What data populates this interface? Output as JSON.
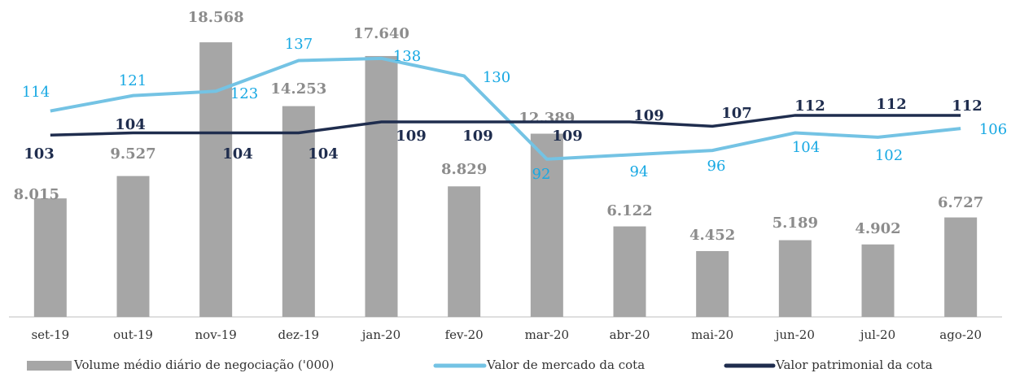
{
  "chart_data": {
    "type": "bar-line",
    "categories": [
      "set-19",
      "out-19",
      "nov-19",
      "dez-19",
      "jan-20",
      "fev-20",
      "mar-20",
      "abr-20",
      "mai-20",
      "jun-20",
      "jul-20",
      "ago-20"
    ],
    "ylim": [
      0,
      20000
    ],
    "y2lim": [
      20,
      155
    ],
    "series": [
      {
        "name": "Volume médio diário de negociação ('000)",
        "type": "bar",
        "color": "#a6a6a6",
        "values": [
          8015,
          9527,
          18568,
          14253,
          17640,
          8829,
          12389,
          6122,
          4452,
          5189,
          4902,
          6727
        ],
        "value_labels": [
          "8.015",
          "9.527",
          "18.568",
          "14.253",
          "17.640",
          "8.829",
          "12.389",
          "6.122",
          "4.452",
          "5.189",
          "4.902",
          "6.727"
        ]
      },
      {
        "name": "Valor de mercado da cota",
        "type": "line",
        "axis": "y2",
        "color": "#74c3e4",
        "values": [
          114,
          121,
          123,
          137,
          138,
          130,
          92,
          94,
          96,
          104,
          102,
          106
        ]
      },
      {
        "name": "Valor patrimonial da cota",
        "type": "line",
        "axis": "y2",
        "color": "#1f2d4e",
        "values": [
          103,
          104,
          104,
          104,
          109,
          109,
          109,
          109,
          107,
          112,
          112,
          112
        ]
      }
    ]
  }
}
